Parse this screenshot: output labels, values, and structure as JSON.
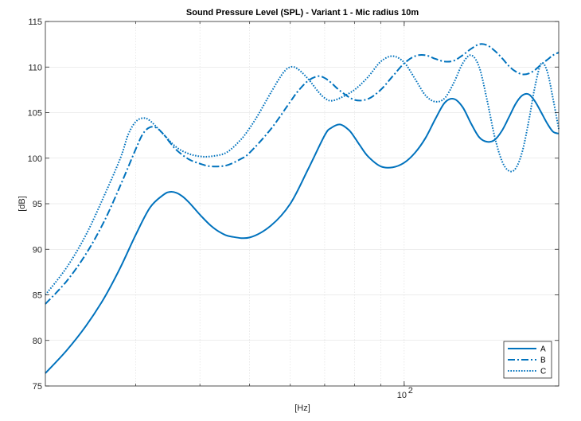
{
  "chart_data": {
    "type": "line",
    "title": "Sound Pressure Level (SPL) - Variant 1 - Mic radius 10m",
    "xlabel": "[Hz]",
    "ylabel": "[dB]",
    "xscale": "log",
    "xlim": [
      20,
      200
    ],
    "ylim": [
      75,
      115
    ],
    "xticks": [
      {
        "value": 100,
        "base": "10",
        "exp": "2"
      }
    ],
    "yticks": [
      75,
      80,
      85,
      90,
      95,
      100,
      105,
      110,
      115
    ],
    "grid": true,
    "legend": "bottom-right",
    "color": "#0072BD",
    "series": [
      {
        "name": "A",
        "style": "solid",
        "x": [
          20,
          22,
          24,
          26,
          28,
          30,
          32,
          34,
          35,
          36,
          37,
          38,
          39,
          40,
          42,
          44,
          46,
          50,
          55,
          60,
          65,
          70,
          72,
          75,
          78,
          80,
          82,
          85,
          90,
          95,
          100,
          105,
          110,
          115,
          120,
          125,
          130,
          135,
          140,
          145,
          150,
          155,
          160,
          165,
          170,
          175,
          180,
          185,
          190,
          195,
          200
        ],
        "y": [
          76.4,
          78.9,
          81.6,
          84.6,
          88.0,
          91.6,
          94.6,
          96.0,
          96.3,
          96.2,
          95.8,
          95.2,
          94.5,
          93.8,
          92.6,
          91.8,
          91.4,
          91.3,
          92.6,
          95.0,
          98.8,
          102.5,
          103.3,
          103.7,
          103.1,
          102.3,
          101.4,
          100.2,
          99.1,
          99.0,
          99.5,
          100.6,
          102.2,
          104.3,
          106.1,
          106.5,
          105.6,
          103.8,
          102.3,
          101.8,
          102.0,
          103.0,
          104.5,
          106.0,
          106.9,
          107.0,
          106.2,
          105.0,
          103.8,
          102.9,
          102.7
        ]
      },
      {
        "name": "B",
        "style": "dashdot",
        "x": [
          20,
          22,
          24,
          26,
          28,
          30,
          31,
          32,
          33,
          34,
          35,
          36,
          38,
          40,
          42,
          45,
          48,
          50,
          55,
          60,
          62,
          65,
          68,
          70,
          72,
          75,
          80,
          85,
          90,
          95,
          100,
          105,
          110,
          115,
          120,
          125,
          130,
          135,
          140,
          145,
          150,
          155,
          160,
          165,
          170,
          175,
          180,
          185,
          190,
          195,
          200
        ],
        "y": [
          84.0,
          86.5,
          89.5,
          93.0,
          97.0,
          101.0,
          102.7,
          103.4,
          103.3,
          102.6,
          101.7,
          100.9,
          99.9,
          99.4,
          99.1,
          99.2,
          99.9,
          100.6,
          103.2,
          106.2,
          107.3,
          108.5,
          109.0,
          108.8,
          108.3,
          107.4,
          106.4,
          106.5,
          107.5,
          109.0,
          110.4,
          111.2,
          111.3,
          110.9,
          110.6,
          110.7,
          111.3,
          112.0,
          112.5,
          112.4,
          111.8,
          111.0,
          110.1,
          109.5,
          109.2,
          109.3,
          109.7,
          110.3,
          110.8,
          111.3,
          111.6
        ]
      },
      {
        "name": "C",
        "style": "dotted",
        "x": [
          20,
          22,
          24,
          26,
          28,
          29,
          30,
          31,
          32,
          34,
          36,
          38,
          40,
          42,
          45,
          48,
          50,
          52,
          55,
          58,
          60,
          62,
          65,
          68,
          70,
          72,
          75,
          80,
          85,
          90,
          95,
          100,
          105,
          110,
          115,
          120,
          125,
          130,
          135,
          140,
          145,
          150,
          155,
          160,
          165,
          170,
          175,
          180,
          185,
          190,
          195,
          200
        ],
        "y": [
          85.0,
          88.0,
          91.6,
          95.8,
          100.0,
          102.6,
          104.0,
          104.4,
          104.1,
          102.6,
          101.2,
          100.5,
          100.2,
          100.2,
          100.6,
          102.0,
          103.3,
          104.8,
          107.2,
          109.3,
          110.0,
          109.8,
          108.7,
          107.3,
          106.6,
          106.3,
          106.6,
          107.5,
          108.9,
          110.6,
          111.2,
          110.5,
          108.7,
          106.9,
          106.2,
          106.6,
          108.3,
          110.4,
          111.3,
          110.0,
          106.4,
          102.4,
          99.7,
          98.6,
          98.9,
          100.8,
          104.2,
          108.0,
          110.4,
          109.5,
          106.5,
          103.2
        ]
      }
    ]
  }
}
